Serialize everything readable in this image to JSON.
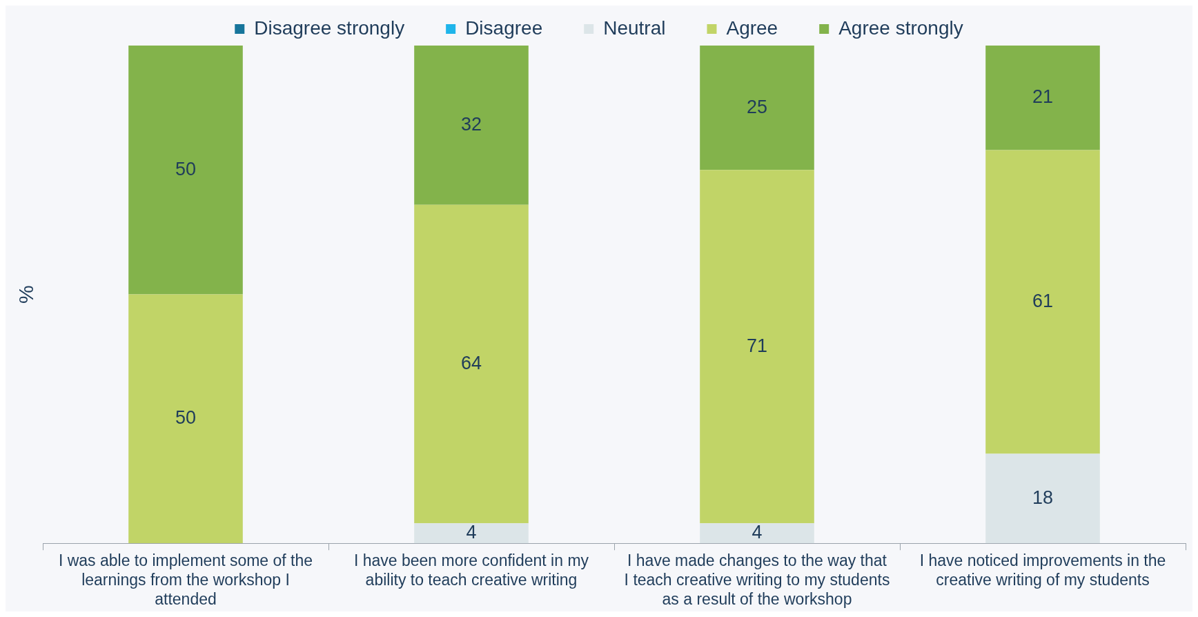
{
  "chart_data": {
    "type": "bar",
    "stacked": true,
    "ylabel": "%",
    "legend": "top",
    "grid": false,
    "categories": [
      "I was able to implement some of the learnings from the workshop I attended",
      "I have been more confident in my ability to teach creative writing",
      "I have made changes to the way that I teach creative writing to my students as a result of the workshop",
      "I have noticed improvements in the creative writing of my students"
    ],
    "series": [
      {
        "name": "Disagree strongly",
        "color": "#17759b",
        "values": [
          0,
          0,
          0,
          0
        ],
        "value_labels": [
          null,
          null,
          null,
          null
        ]
      },
      {
        "name": "Disagree",
        "color": "#1fb5ea",
        "values": [
          0,
          0,
          0,
          0
        ],
        "value_labels": [
          null,
          null,
          null,
          null
        ]
      },
      {
        "name": "Neutral",
        "color": "#dce5e8",
        "values": [
          0,
          4,
          4,
          18
        ],
        "value_labels": [
          null,
          "4",
          "4",
          "18"
        ]
      },
      {
        "name": "Agree",
        "color": "#c1d467",
        "values": [
          50,
          64,
          71,
          61
        ],
        "value_labels": [
          "50",
          "64",
          "71",
          "61"
        ]
      },
      {
        "name": "Agree strongly",
        "color": "#83b34b",
        "values": [
          50,
          32,
          25,
          21
        ],
        "value_labels": [
          "50",
          "32",
          "25",
          "21"
        ]
      }
    ]
  }
}
